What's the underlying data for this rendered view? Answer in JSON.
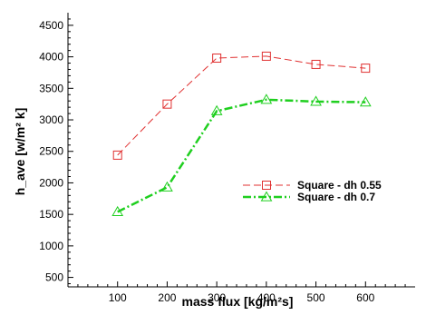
{
  "chart_data": {
    "type": "line",
    "title": "",
    "xlabel": "mass flux [kg/m²s]",
    "ylabel": "h_ave [w/m² k]",
    "xlim": [
      0,
      700
    ],
    "ylim": [
      350,
      4700
    ],
    "x_ticks": [
      100,
      200,
      300,
      400,
      500,
      600
    ],
    "y_ticks": [
      500,
      1000,
      1500,
      2000,
      2500,
      3000,
      3500,
      4000,
      4500
    ],
    "grid": false,
    "legend_position": "center-right",
    "series": [
      {
        "name": "Square - dh 0.55",
        "color": "#e03030",
        "line_style": "dashed",
        "marker": "square",
        "x": [
          100,
          200,
          300,
          400,
          500,
          600
        ],
        "y": [
          2440,
          3250,
          3980,
          4010,
          3880,
          3820
        ]
      },
      {
        "name": "Square - dh 0.7",
        "color": "#1fcf1f",
        "line_style": "dash-dot",
        "marker": "triangle",
        "x": [
          100,
          200,
          300,
          400,
          500,
          600
        ],
        "y": [
          1540,
          1930,
          3140,
          3320,
          3290,
          3280
        ]
      }
    ]
  }
}
